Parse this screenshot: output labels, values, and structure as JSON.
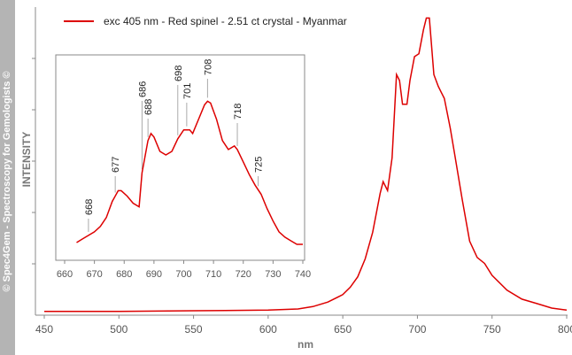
{
  "watermark": "© Spec4Gem - Spectroscopy for Gemologists ©",
  "colors": {
    "series": "#dd0000",
    "axis": "#888888",
    "peak_tick": "#aaaaaa"
  },
  "chart_data": [
    {
      "type": "line",
      "title": "",
      "xlabel": "nm",
      "ylabel": "INTENSITY",
      "xlim": [
        450,
        800
      ],
      "ylim": [
        0,
        1
      ],
      "x_ticks": [
        "450",
        "500",
        "550",
        "600",
        "650",
        "700",
        "750",
        "800"
      ],
      "legend": {
        "position": "top-left",
        "entries": [
          "exc 405 nm - Red spinel - 2.51 ct crystal - Myanmar"
        ]
      },
      "series": [
        {
          "name": "exc 405 nm - Red spinel - 2.51 ct crystal - Myanmar",
          "x": [
            450,
            500,
            550,
            600,
            620,
            630,
            640,
            650,
            655,
            660,
            665,
            670,
            675,
            677,
            680,
            683,
            686,
            688,
            690,
            693,
            695,
            698,
            701,
            704,
            706,
            708,
            711,
            714,
            716,
            718,
            722,
            725,
            730,
            735,
            740,
            745,
            750,
            760,
            770,
            780,
            790,
            800
          ],
          "y": [
            0.004,
            0.004,
            0.006,
            0.008,
            0.012,
            0.02,
            0.035,
            0.06,
            0.085,
            0.12,
            0.18,
            0.27,
            0.4,
            0.44,
            0.41,
            0.52,
            0.8,
            0.78,
            0.7,
            0.7,
            0.78,
            0.86,
            0.87,
            0.95,
            0.99,
            0.99,
            0.8,
            0.76,
            0.74,
            0.72,
            0.62,
            0.53,
            0.38,
            0.24,
            0.185,
            0.165,
            0.125,
            0.075,
            0.045,
            0.03,
            0.015,
            0.008
          ]
        }
      ]
    },
    {
      "type": "line",
      "title": "",
      "xlabel": "",
      "ylabel": "",
      "xlim": [
        660,
        740
      ],
      "ylim": [
        0,
        1
      ],
      "x_ticks": [
        "660",
        "670",
        "680",
        "690",
        "700",
        "710",
        "720",
        "730",
        "740"
      ],
      "annotations": [
        "668",
        "677",
        "686",
        "688",
        "698",
        "701",
        "708",
        "718",
        "725"
      ],
      "series": [
        {
          "x": [
            664,
            666,
            668,
            670,
            672,
            674,
            676,
            678,
            679,
            681,
            683,
            685,
            686,
            688,
            689,
            690,
            692,
            694,
            696,
            698,
            700,
            702,
            703,
            705,
            707,
            708,
            709,
            711,
            713,
            715,
            717,
            718,
            720,
            722,
            724,
            726,
            728,
            730,
            732,
            734,
            736,
            738,
            740
          ],
          "y": [
            0.01,
            0.03,
            0.05,
            0.07,
            0.1,
            0.15,
            0.24,
            0.3,
            0.3,
            0.27,
            0.23,
            0.21,
            0.4,
            0.58,
            0.62,
            0.6,
            0.52,
            0.5,
            0.52,
            0.59,
            0.64,
            0.64,
            0.62,
            0.7,
            0.78,
            0.8,
            0.79,
            0.7,
            0.58,
            0.53,
            0.55,
            0.53,
            0.46,
            0.39,
            0.33,
            0.28,
            0.2,
            0.13,
            0.07,
            0.04,
            0.02,
            0.0,
            0.0
          ]
        }
      ]
    }
  ]
}
